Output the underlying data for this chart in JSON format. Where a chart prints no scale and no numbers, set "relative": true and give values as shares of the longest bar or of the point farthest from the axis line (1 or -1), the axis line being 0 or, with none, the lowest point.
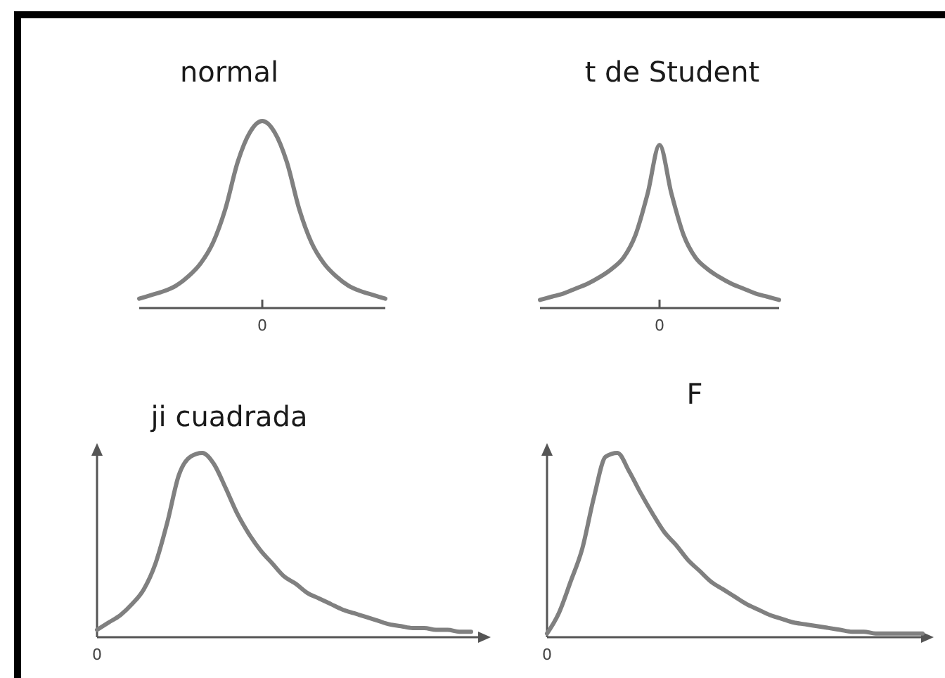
{
  "chart_data": [
    {
      "type": "line",
      "title": "normal",
      "relative": true,
      "annotations": [
        "0"
      ],
      "categories": [
        null,
        null,
        null,
        null,
        null,
        null,
        null,
        null,
        null,
        null,
        null,
        null,
        null,
        null,
        null,
        null,
        null,
        null,
        null,
        null,
        null
      ],
      "series": [
        {
          "color": "#808080",
          "values": [
            0.05,
            0.07,
            0.09,
            0.12,
            0.17,
            0.24,
            0.35,
            0.53,
            0.78,
            0.94,
            1,
            0.94,
            0.78,
            0.53,
            0.35,
            0.24,
            0.17,
            0.12,
            0.09,
            0.07,
            0.05
          ]
        }
      ]
    },
    {
      "type": "line",
      "title": "t de Student",
      "relative": true,
      "annotations": [
        "0"
      ],
      "categories": [
        null,
        null,
        null,
        null,
        null,
        null,
        null,
        null,
        null,
        null,
        null,
        null,
        null,
        null,
        null,
        null,
        null,
        null,
        null,
        null,
        null
      ],
      "series": [
        {
          "color": "#808080",
          "values": [
            0.05,
            0.07,
            0.09,
            0.12,
            0.15,
            0.19,
            0.24,
            0.31,
            0.45,
            0.7,
            1,
            0.7,
            0.45,
            0.31,
            0.24,
            0.19,
            0.15,
            0.12,
            0.09,
            0.07,
            0.05
          ]
        }
      ]
    },
    {
      "type": "line",
      "title": "ji cuadrada",
      "relative": true,
      "annotations": [
        "0"
      ],
      "categories": [
        null,
        null,
        null,
        null,
        null,
        null,
        null,
        null,
        null,
        null,
        null,
        null,
        null,
        null,
        null,
        null,
        null,
        null,
        null,
        null,
        null,
        null,
        null,
        null,
        null,
        null,
        null,
        null,
        null,
        null,
        null,
        null,
        null
      ],
      "series": [
        {
          "color": "#808080",
          "values": [
            0.04,
            0.08,
            0.12,
            0.18,
            0.26,
            0.4,
            0.62,
            0.88,
            0.98,
            1,
            0.94,
            0.81,
            0.67,
            0.56,
            0.47,
            0.4,
            0.33,
            0.29,
            0.24,
            0.21,
            0.18,
            0.15,
            0.13,
            0.11,
            0.09,
            0.07,
            0.06,
            0.05,
            0.05,
            0.04,
            0.04,
            0.03,
            0.03
          ]
        }
      ]
    },
    {
      "type": "line",
      "title": "F",
      "relative": true,
      "annotations": [
        "0"
      ],
      "categories": [
        null,
        null,
        null,
        null,
        null,
        null,
        null,
        null,
        null,
        null,
        null,
        null,
        null,
        null,
        null,
        null,
        null,
        null,
        null,
        null,
        null,
        null,
        null,
        null,
        null,
        null,
        null,
        null,
        null,
        null,
        null,
        null,
        null
      ],
      "series": [
        {
          "color": "#808080",
          "values": [
            0.02,
            0.13,
            0.3,
            0.48,
            0.76,
            0.98,
            1,
            0.9,
            0.78,
            0.67,
            0.57,
            0.5,
            0.42,
            0.36,
            0.3,
            0.26,
            0.22,
            0.18,
            0.15,
            0.12,
            0.1,
            0.08,
            0.07,
            0.06,
            0.05,
            0.04,
            0.03,
            0.03,
            0.02,
            0.02,
            0.02,
            0.02,
            0.02
          ]
        }
      ]
    }
  ]
}
